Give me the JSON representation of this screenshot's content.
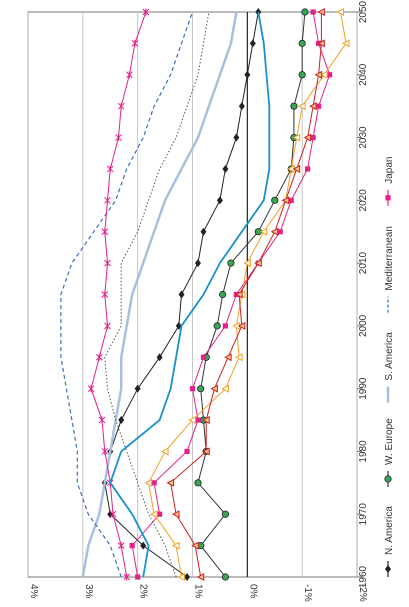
{
  "chart_data": {
    "type": "line",
    "title": "",
    "xlabel": "",
    "ylabel": "",
    "x_ticks": [
      1960,
      1970,
      1980,
      1990,
      2000,
      2010,
      2020,
      2030,
      2040,
      2050
    ],
    "y_ticks": [
      {
        "value": 4,
        "label": "4%"
      },
      {
        "value": 3,
        "label": "3%"
      },
      {
        "value": 2,
        "label": "2%"
      },
      {
        "value": 1,
        "label": "1%"
      },
      {
        "value": 0,
        "label": "0%"
      },
      {
        "value": -1,
        "label": "-1%"
      },
      {
        "value": -2,
        "label": "-2%"
      }
    ],
    "xlim": [
      1960,
      2050
    ],
    "ylim": [
      -2,
      4
    ],
    "grid": true,
    "legend_position": "right",
    "series": [
      {
        "name": "N. America",
        "color": "#222222",
        "marker": "diamond",
        "dash": "solid",
        "points": [
          [
            1960,
            1.1
          ],
          [
            1965,
            1.9
          ],
          [
            1970,
            2.5
          ],
          [
            1975,
            2.6
          ],
          [
            1980,
            2.5
          ],
          [
            1985,
            2.3
          ],
          [
            1990,
            2.0
          ],
          [
            1995,
            1.6
          ],
          [
            2000,
            1.25
          ],
          [
            2005,
            1.2
          ],
          [
            2010,
            0.9
          ],
          [
            2015,
            0.8
          ],
          [
            2020,
            0.5
          ],
          [
            2025,
            0.4
          ],
          [
            2030,
            0.2
          ],
          [
            2035,
            0.1
          ],
          [
            2040,
            0.0
          ],
          [
            2045,
            -0.1
          ],
          [
            2050,
            -0.2
          ]
        ]
      },
      {
        "name": "W. Europe",
        "color": "#333333",
        "marker": "circle-green",
        "markerColor": "#3aa655",
        "dash": "solid",
        "points": [
          [
            1960,
            0.4
          ],
          [
            1965,
            0.85
          ],
          [
            1970,
            0.4
          ],
          [
            1975,
            0.9
          ],
          [
            1980,
            0.75
          ],
          [
            1985,
            0.8
          ],
          [
            1990,
            0.85
          ],
          [
            1995,
            0.75
          ],
          [
            2000,
            0.55
          ],
          [
            2005,
            0.45
          ],
          [
            2010,
            0.3
          ],
          [
            2015,
            -0.2
          ],
          [
            2020,
            -0.5
          ],
          [
            2025,
            -0.8
          ],
          [
            2030,
            -0.85
          ],
          [
            2035,
            -0.85
          ],
          [
            2040,
            -1.0
          ],
          [
            2045,
            -1.0
          ],
          [
            2050,
            -1.05
          ]
        ]
      },
      {
        "name": "S. America",
        "color": "#a7c0df",
        "marker": "none",
        "dash": "solid",
        "width": 2.5,
        "points": [
          [
            1960,
            3.0
          ],
          [
            1965,
            2.9
          ],
          [
            1970,
            2.7
          ],
          [
            1975,
            2.6
          ],
          [
            1980,
            2.5
          ],
          [
            1985,
            2.4
          ],
          [
            1990,
            2.3
          ],
          [
            1995,
            2.3
          ],
          [
            2000,
            2.2
          ],
          [
            2005,
            2.1
          ],
          [
            2010,
            1.9
          ],
          [
            2015,
            1.7
          ],
          [
            2020,
            1.5
          ],
          [
            2025,
            1.2
          ],
          [
            2030,
            0.9
          ],
          [
            2035,
            0.7
          ],
          [
            2040,
            0.5
          ],
          [
            2045,
            0.3
          ],
          [
            2050,
            0.2
          ]
        ]
      },
      {
        "name": "Mediterranean",
        "color": "#3a6fbf",
        "marker": "none",
        "dash": "dashed",
        "points": [
          [
            1960,
            2.3
          ],
          [
            1965,
            2.5
          ],
          [
            1970,
            2.9
          ],
          [
            1975,
            3.1
          ],
          [
            1980,
            3.1
          ],
          [
            1985,
            3.2
          ],
          [
            1990,
            3.3
          ],
          [
            1995,
            3.4
          ],
          [
            2000,
            3.4
          ],
          [
            2005,
            3.4
          ],
          [
            2010,
            3.2
          ],
          [
            2015,
            2.8
          ],
          [
            2020,
            2.4
          ],
          [
            2025,
            2.2
          ],
          [
            2030,
            1.9
          ],
          [
            2035,
            1.7
          ],
          [
            2040,
            1.4
          ],
          [
            2045,
            1.2
          ],
          [
            2050,
            1.0
          ]
        ]
      },
      {
        "name": "Japan",
        "color": "#e5208a",
        "marker": "square",
        "dash": "solid",
        "points": [
          [
            1960,
            2.0
          ],
          [
            1965,
            2.1
          ],
          [
            1970,
            1.6
          ],
          [
            1975,
            1.7
          ],
          [
            1980,
            1.1
          ],
          [
            1985,
            0.9
          ],
          [
            1990,
            1.0
          ],
          [
            1995,
            0.8
          ],
          [
            2000,
            0.4
          ],
          [
            2005,
            0.2
          ],
          [
            2010,
            -0.2
          ],
          [
            2015,
            -0.6
          ],
          [
            2020,
            -0.8
          ],
          [
            2025,
            -1.1
          ],
          [
            2030,
            -1.2
          ],
          [
            2035,
            -1.3
          ],
          [
            2040,
            -1.5
          ],
          [
            2045,
            -1.3
          ],
          [
            2050,
            -1.2
          ]
        ]
      },
      {
        "name": "",
        "color": "#e5208a",
        "marker": "star",
        "dash": "solid",
        "points": [
          [
            1960,
            2.2
          ],
          [
            1965,
            2.3
          ],
          [
            1970,
            2.45
          ],
          [
            1975,
            2.5
          ],
          [
            1980,
            2.6
          ],
          [
            1985,
            2.65
          ],
          [
            1990,
            2.85
          ],
          [
            1995,
            2.7
          ],
          [
            2000,
            2.55
          ],
          [
            2005,
            2.6
          ],
          [
            2010,
            2.55
          ],
          [
            2015,
            2.6
          ],
          [
            2020,
            2.55
          ],
          [
            2025,
            2.5
          ],
          [
            2030,
            2.35
          ],
          [
            2035,
            2.3
          ],
          [
            2040,
            2.15
          ],
          [
            2045,
            2.05
          ],
          [
            2050,
            1.85
          ]
        ]
      },
      {
        "name": "",
        "color": "#f0a020",
        "marker": "triangle",
        "dash": "solid",
        "points": [
          [
            1960,
            1.2
          ],
          [
            1965,
            1.3
          ],
          [
            1970,
            1.7
          ],
          [
            1975,
            1.8
          ],
          [
            1980,
            1.5
          ],
          [
            1985,
            1.0
          ],
          [
            1990,
            0.4
          ],
          [
            1995,
            0.15
          ],
          [
            2000,
            0.2
          ],
          [
            2005,
            0.1
          ],
          [
            2010,
            0.0
          ],
          [
            2015,
            -0.3
          ],
          [
            2020,
            -0.7
          ],
          [
            2025,
            -0.8
          ],
          [
            2030,
            -0.9
          ],
          [
            2035,
            -1.0
          ],
          [
            2040,
            -1.4
          ],
          [
            2045,
            -1.8
          ],
          [
            2050,
            -1.7
          ]
        ]
      },
      {
        "name": "",
        "color": "#cc2020",
        "marker": "triangle-outline",
        "dash": "solid",
        "points": [
          [
            1960,
            0.85
          ],
          [
            1965,
            0.95
          ],
          [
            1970,
            1.3
          ],
          [
            1975,
            1.4
          ],
          [
            1980,
            0.75
          ],
          [
            1985,
            0.75
          ],
          [
            1990,
            0.6
          ],
          [
            1995,
            0.35
          ],
          [
            2000,
            0.1
          ],
          [
            2005,
            0.15
          ],
          [
            2010,
            -0.2
          ],
          [
            2015,
            -0.5
          ],
          [
            2020,
            -0.7
          ],
          [
            2025,
            -0.9
          ],
          [
            2030,
            -1.1
          ],
          [
            2035,
            -1.2
          ],
          [
            2040,
            -1.3
          ],
          [
            2045,
            -1.35
          ],
          [
            2050,
            -1.35
          ]
        ]
      },
      {
        "name": "",
        "color": "#555555",
        "marker": "none",
        "dash": "dotted",
        "points": [
          [
            1960,
            1.3
          ],
          [
            1965,
            1.5
          ],
          [
            1970,
            1.8
          ],
          [
            1975,
            2.0
          ],
          [
            1980,
            2.2
          ],
          [
            1985,
            2.4
          ],
          [
            1990,
            2.55
          ],
          [
            1995,
            2.6
          ],
          [
            2000,
            2.3
          ],
          [
            2005,
            2.3
          ],
          [
            2010,
            2.3
          ],
          [
            2015,
            2.0
          ],
          [
            2020,
            1.8
          ],
          [
            2025,
            1.6
          ],
          [
            2030,
            1.3
          ],
          [
            2035,
            1.1
          ],
          [
            2040,
            0.9
          ],
          [
            2045,
            0.8
          ],
          [
            2050,
            0.7
          ]
        ]
      }
    ]
  }
}
